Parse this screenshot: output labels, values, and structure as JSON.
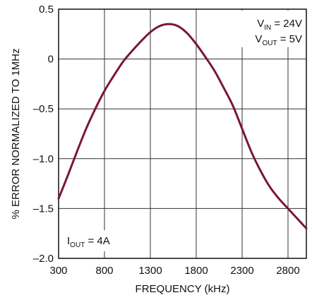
{
  "chart_data": {
    "type": "line",
    "title": "",
    "xlabel": "FREQUENCY (kHz)",
    "ylabel": "% ERROR NORMALIZED TO 1MHz",
    "xlim": [
      300,
      3000
    ],
    "ylim": [
      -2.0,
      0.5
    ],
    "x_ticks": [
      300,
      800,
      1300,
      1800,
      2300,
      2800
    ],
    "x_tick_labels": [
      "300",
      "800",
      "1300",
      "1800",
      "2300",
      "2800"
    ],
    "y_ticks": [
      0.5,
      0,
      -0.5,
      -1.0,
      -1.5,
      -2.0
    ],
    "y_tick_labels": [
      "0.5",
      "0",
      "–0.5",
      "–1.0",
      "–1.5",
      "–2.0"
    ],
    "grid": true,
    "line_color": "#7a1733",
    "series": [
      {
        "x": [
          300,
          400,
          500,
          600,
          700,
          800,
          900,
          1000,
          1100,
          1200,
          1300,
          1400,
          1500,
          1600,
          1700,
          1800,
          1900,
          2000,
          2100,
          2200,
          2300,
          2400,
          2500,
          2600,
          2700,
          2800,
          2900,
          3000
        ],
        "y": [
          -1.4,
          -1.17,
          -0.93,
          -0.7,
          -0.5,
          -0.32,
          -0.17,
          -0.03,
          0.08,
          0.18,
          0.27,
          0.33,
          0.35,
          0.33,
          0.26,
          0.15,
          0.02,
          -0.12,
          -0.29,
          -0.47,
          -0.7,
          -0.93,
          -1.12,
          -1.28,
          -1.4,
          -1.5,
          -1.6,
          -1.7
        ]
      }
    ],
    "annotations": {
      "vin": {
        "base": "V",
        "sub": "IN",
        "rest": " = 24V"
      },
      "vout": {
        "base": "V",
        "sub": "OUT",
        "rest": " = 5V"
      },
      "iout": {
        "base": "I",
        "sub": "OUT",
        "rest": " = 4A"
      }
    }
  }
}
